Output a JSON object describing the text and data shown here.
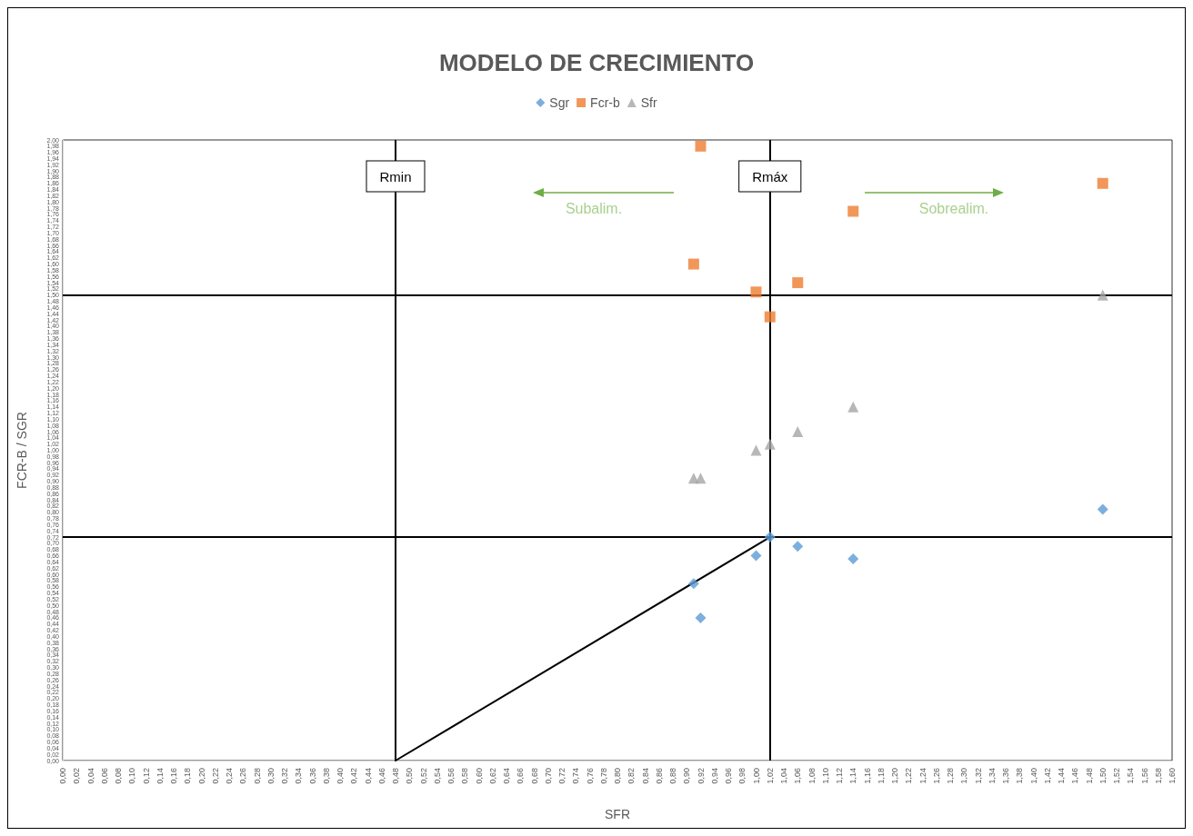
{
  "chart_data": {
    "type": "scatter",
    "title": "MODELO DE CRECIMIENTO",
    "xlabel": "SFR",
    "ylabel": "FCR-B / SGR",
    "legend": "top",
    "grid": false,
    "xlim": [
      0,
      1.6
    ],
    "ylim": [
      0,
      2
    ],
    "xticks": [
      {
        "value": 0,
        "label": "0,00"
      },
      {
        "value": 0.02,
        "label": "0,02"
      },
      {
        "value": 0.04,
        "label": "0,04"
      },
      {
        "value": 0.06,
        "label": "0,06"
      },
      {
        "value": 0.08,
        "label": "0,08"
      },
      {
        "value": 0.1,
        "label": "0,10"
      },
      {
        "value": 0.12,
        "label": "0,12"
      },
      {
        "value": 0.14,
        "label": "0,14"
      },
      {
        "value": 0.16,
        "label": "0,16"
      },
      {
        "value": 0.18,
        "label": "0,18"
      },
      {
        "value": 0.2,
        "label": "0,20"
      },
      {
        "value": 0.22,
        "label": "0,22"
      },
      {
        "value": 0.24,
        "label": "0,24"
      },
      {
        "value": 0.26,
        "label": "0,26"
      },
      {
        "value": 0.28,
        "label": "0,28"
      },
      {
        "value": 0.3,
        "label": "0,30"
      },
      {
        "value": 0.32,
        "label": "0,32"
      },
      {
        "value": 0.34,
        "label": "0,34"
      },
      {
        "value": 0.36,
        "label": "0,36"
      },
      {
        "value": 0.38,
        "label": "0,38"
      },
      {
        "value": 0.4,
        "label": "0,40"
      },
      {
        "value": 0.42,
        "label": "0,42"
      },
      {
        "value": 0.44,
        "label": "0,44"
      },
      {
        "value": 0.46,
        "label": "0,46"
      },
      {
        "value": 0.48,
        "label": "0,48"
      },
      {
        "value": 0.5,
        "label": "0,50"
      },
      {
        "value": 0.52,
        "label": "0,52"
      },
      {
        "value": 0.54,
        "label": "0,54"
      },
      {
        "value": 0.56,
        "label": "0,56"
      },
      {
        "value": 0.58,
        "label": "0,58"
      },
      {
        "value": 0.6,
        "label": "0,60"
      },
      {
        "value": 0.62,
        "label": "0,62"
      },
      {
        "value": 0.64,
        "label": "0,64"
      },
      {
        "value": 0.66,
        "label": "0,66"
      },
      {
        "value": 0.68,
        "label": "0,68"
      },
      {
        "value": 0.7,
        "label": "0,70"
      },
      {
        "value": 0.72,
        "label": "0,72"
      },
      {
        "value": 0.74,
        "label": "0,74"
      },
      {
        "value": 0.76,
        "label": "0,76"
      },
      {
        "value": 0.78,
        "label": "0,78"
      },
      {
        "value": 0.8,
        "label": "0,80"
      },
      {
        "value": 0.82,
        "label": "0,82"
      },
      {
        "value": 0.84,
        "label": "0,84"
      },
      {
        "value": 0.86,
        "label": "0,86"
      },
      {
        "value": 0.88,
        "label": "0,88"
      },
      {
        "value": 0.9,
        "label": "0,90"
      },
      {
        "value": 0.92,
        "label": "0,92"
      },
      {
        "value": 0.94,
        "label": "0,94"
      },
      {
        "value": 0.96,
        "label": "0,96"
      },
      {
        "value": 0.98,
        "label": "0,98"
      },
      {
        "value": 1,
        "label": "1,00"
      },
      {
        "value": 1.02,
        "label": "1,02"
      },
      {
        "value": 1.04,
        "label": "1,04"
      },
      {
        "value": 1.06,
        "label": "1,06"
      },
      {
        "value": 1.08,
        "label": "1,08"
      },
      {
        "value": 1.1,
        "label": "1,10"
      },
      {
        "value": 1.12,
        "label": "1,12"
      },
      {
        "value": 1.14,
        "label": "1,14"
      },
      {
        "value": 1.16,
        "label": "1,16"
      },
      {
        "value": 1.18,
        "label": "1,18"
      },
      {
        "value": 1.2,
        "label": "1,20"
      },
      {
        "value": 1.22,
        "label": "1,22"
      },
      {
        "value": 1.24,
        "label": "1,24"
      },
      {
        "value": 1.26,
        "label": "1,26"
      },
      {
        "value": 1.28,
        "label": "1,28"
      },
      {
        "value": 1.3,
        "label": "1,30"
      },
      {
        "value": 1.32,
        "label": "1,32"
      },
      {
        "value": 1.34,
        "label": "1,34"
      },
      {
        "value": 1.36,
        "label": "1,36"
      },
      {
        "value": 1.38,
        "label": "1,38"
      },
      {
        "value": 1.4,
        "label": "1,40"
      },
      {
        "value": 1.42,
        "label": "1,42"
      },
      {
        "value": 1.44,
        "label": "1,44"
      },
      {
        "value": 1.46,
        "label": "1,46"
      },
      {
        "value": 1.48,
        "label": "1,48"
      },
      {
        "value": 1.5,
        "label": "1,50"
      },
      {
        "value": 1.52,
        "label": "1,52"
      },
      {
        "value": 1.54,
        "label": "1,54"
      },
      {
        "value": 1.56,
        "label": "1,56"
      },
      {
        "value": 1.58,
        "label": "1,58"
      },
      {
        "value": 1.6,
        "label": "1,60"
      }
    ],
    "yticks": [
      {
        "value": 0,
        "label": "0,00"
      },
      {
        "value": 0.02,
        "label": "0,02"
      },
      {
        "value": 0.04,
        "label": "0,04"
      },
      {
        "value": 0.06,
        "label": "0,06"
      },
      {
        "value": 0.08,
        "label": "0,08"
      },
      {
        "value": 0.1,
        "label": "0,10"
      },
      {
        "value": 0.12,
        "label": "0,12"
      },
      {
        "value": 0.14,
        "label": "0,14"
      },
      {
        "value": 0.16,
        "label": "0,16"
      },
      {
        "value": 0.18,
        "label": "0,18"
      },
      {
        "value": 0.2,
        "label": "0,20"
      },
      {
        "value": 0.22,
        "label": "0,22"
      },
      {
        "value": 0.24,
        "label": "0,24"
      },
      {
        "value": 0.26,
        "label": "0,26"
      },
      {
        "value": 0.28,
        "label": "0,28"
      },
      {
        "value": 0.3,
        "label": "0,30"
      },
      {
        "value": 0.32,
        "label": "0,32"
      },
      {
        "value": 0.34,
        "label": "0,34"
      },
      {
        "value": 0.36,
        "label": "0,36"
      },
      {
        "value": 0.38,
        "label": "0,38"
      },
      {
        "value": 0.4,
        "label": "0,40"
      },
      {
        "value": 0.42,
        "label": "0,42"
      },
      {
        "value": 0.44,
        "label": "0,44"
      },
      {
        "value": 0.46,
        "label": "0,46"
      },
      {
        "value": 0.48,
        "label": "0,48"
      },
      {
        "value": 0.5,
        "label": "0,50"
      },
      {
        "value": 0.52,
        "label": "0,52"
      },
      {
        "value": 0.54,
        "label": "0,54"
      },
      {
        "value": 0.56,
        "label": "0,56"
      },
      {
        "value": 0.58,
        "label": "0,58"
      },
      {
        "value": 0.6,
        "label": "0,60"
      },
      {
        "value": 0.62,
        "label": "0,62"
      },
      {
        "value": 0.64,
        "label": "0,64"
      },
      {
        "value": 0.66,
        "label": "0,66"
      },
      {
        "value": 0.68,
        "label": "0,68"
      },
      {
        "value": 0.7,
        "label": "0,70"
      },
      {
        "value": 0.72,
        "label": "0,72"
      },
      {
        "value": 0.74,
        "label": "0,74"
      },
      {
        "value": 0.76,
        "label": "0,76"
      },
      {
        "value": 0.78,
        "label": "0,78"
      },
      {
        "value": 0.8,
        "label": "0,80"
      },
      {
        "value": 0.82,
        "label": "0,82"
      },
      {
        "value": 0.84,
        "label": "0,84"
      },
      {
        "value": 0.86,
        "label": "0,86"
      },
      {
        "value": 0.88,
        "label": "0,88"
      },
      {
        "value": 0.9,
        "label": "0,90"
      },
      {
        "value": 0.92,
        "label": "0,92"
      },
      {
        "value": 0.94,
        "label": "0,94"
      },
      {
        "value": 0.96,
        "label": "0,96"
      },
      {
        "value": 0.98,
        "label": "0,98"
      },
      {
        "value": 1,
        "label": "1,00"
      },
      {
        "value": 1.02,
        "label": "1,02"
      },
      {
        "value": 1.04,
        "label": "1,04"
      },
      {
        "value": 1.06,
        "label": "1,06"
      },
      {
        "value": 1.08,
        "label": "1,08"
      },
      {
        "value": 1.1,
        "label": "1,10"
      },
      {
        "value": 1.12,
        "label": "1,12"
      },
      {
        "value": 1.14,
        "label": "1,14"
      },
      {
        "value": 1.16,
        "label": "1,16"
      },
      {
        "value": 1.18,
        "label": "1,18"
      },
      {
        "value": 1.2,
        "label": "1,20"
      },
      {
        "value": 1.22,
        "label": "1,22"
      },
      {
        "value": 1.24,
        "label": "1,24"
      },
      {
        "value": 1.26,
        "label": "1,26"
      },
      {
        "value": 1.28,
        "label": "1,28"
      },
      {
        "value": 1.3,
        "label": "1,30"
      },
      {
        "value": 1.32,
        "label": "1,32"
      },
      {
        "value": 1.34,
        "label": "1,34"
      },
      {
        "value": 1.36,
        "label": "1,36"
      },
      {
        "value": 1.38,
        "label": "1,38"
      },
      {
        "value": 1.4,
        "label": "1,40"
      },
      {
        "value": 1.42,
        "label": "1,42"
      },
      {
        "value": 1.44,
        "label": "1,44"
      },
      {
        "value": 1.46,
        "label": "1,46"
      },
      {
        "value": 1.48,
        "label": "1,48"
      },
      {
        "value": 1.5,
        "label": "1,50"
      },
      {
        "value": 1.52,
        "label": "1,52"
      },
      {
        "value": 1.54,
        "label": "1,54"
      },
      {
        "value": 1.56,
        "label": "1,56"
      },
      {
        "value": 1.58,
        "label": "1,58"
      },
      {
        "value": 1.6,
        "label": "1,60"
      },
      {
        "value": 1.62,
        "label": "1,62"
      },
      {
        "value": 1.64,
        "label": "1,64"
      },
      {
        "value": 1.66,
        "label": "1,66"
      },
      {
        "value": 1.68,
        "label": "1,68"
      },
      {
        "value": 1.7,
        "label": "1,70"
      },
      {
        "value": 1.72,
        "label": "1,72"
      },
      {
        "value": 1.74,
        "label": "1,74"
      },
      {
        "value": 1.76,
        "label": "1,76"
      },
      {
        "value": 1.78,
        "label": "1,78"
      },
      {
        "value": 1.8,
        "label": "1,80"
      },
      {
        "value": 1.82,
        "label": "1,82"
      },
      {
        "value": 1.84,
        "label": "1,84"
      },
      {
        "value": 1.86,
        "label": "1,86"
      },
      {
        "value": 1.88,
        "label": "1,88"
      },
      {
        "value": 1.9,
        "label": "1,90"
      },
      {
        "value": 1.92,
        "label": "1,92"
      },
      {
        "value": 1.94,
        "label": "1,94"
      },
      {
        "value": 1.96,
        "label": "1,96"
      },
      {
        "value": 1.98,
        "label": "1,98"
      },
      {
        "value": 2,
        "label": "2,00"
      }
    ],
    "series": [
      {
        "name": "Sgr",
        "color": "#5b9bd5",
        "marker": "diamond",
        "x": [
          0.91,
          0.92,
          1.0,
          1.02,
          1.06,
          1.14,
          1.5
        ],
        "values": [
          0.57,
          0.46,
          0.66,
          0.72,
          0.69,
          0.65,
          0.81
        ]
      },
      {
        "name": "Fcr-b",
        "color": "#ed7d31",
        "marker": "square",
        "x": [
          0.91,
          0.92,
          1.0,
          1.02,
          1.06,
          1.14,
          1.5
        ],
        "values": [
          1.6,
          1.98,
          1.51,
          1.43,
          1.54,
          1.77,
          1.86
        ]
      },
      {
        "name": "Sfr",
        "color": "#a5a5a5",
        "marker": "triangle",
        "x": [
          0.91,
          0.92,
          1.0,
          1.02,
          1.06,
          1.14,
          1.5
        ],
        "values": [
          0.91,
          0.91,
          1.0,
          1.02,
          1.06,
          1.14,
          1.5
        ]
      },
      {
        "type": "line",
        "color": "#000000",
        "marker": "none",
        "line_style": "solid",
        "x": [
          0.48,
          1.02
        ],
        "values": [
          0,
          0.72
        ]
      }
    ],
    "ref_lines": [
      {
        "axis": "x",
        "value": 0.48,
        "label": "Rmin",
        "color": "#000000"
      },
      {
        "axis": "x",
        "value": 1.02,
        "label": "Rmáx",
        "color": "#000000"
      },
      {
        "axis": "y",
        "value": 1.5,
        "label": null,
        "color": "#000000"
      },
      {
        "axis": "y",
        "value": 0.72,
        "label": null,
        "color": "#000000"
      }
    ],
    "annotations": [
      "Subalim.",
      "Sobrealim."
    ]
  }
}
